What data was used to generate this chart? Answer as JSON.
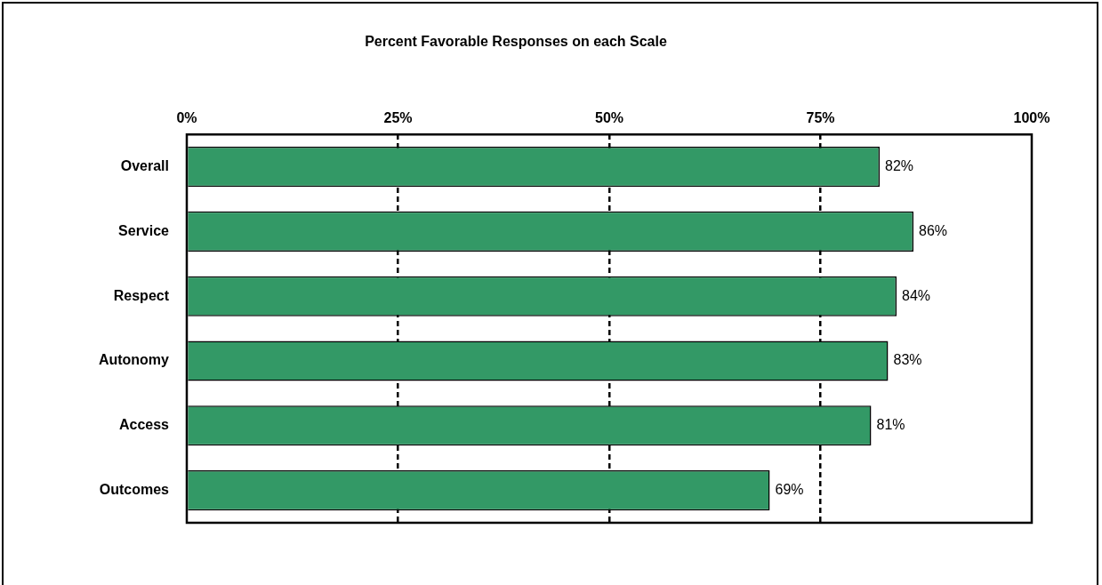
{
  "chart_data": {
    "type": "bar",
    "orientation": "horizontal",
    "title": "Percent Favorable Responses on each Scale",
    "categories": [
      "Overall",
      "Service",
      "Respect",
      "Autonomy",
      "Access",
      "Outcomes"
    ],
    "values": [
      82,
      86,
      84,
      83,
      81,
      69
    ],
    "value_labels": [
      "82%",
      "86%",
      "84%",
      "83%",
      "81%",
      "69%"
    ],
    "color": "#339966",
    "xlim": [
      0,
      100
    ],
    "xticks": [
      {
        "value": 0,
        "label": "0%"
      },
      {
        "value": 25,
        "label": "25%"
      },
      {
        "value": 50,
        "label": "50%"
      },
      {
        "value": 75,
        "label": "75%"
      },
      {
        "value": 100,
        "label": "100%"
      }
    ],
    "grid": "x",
    "line_style": "dashed",
    "legend": false
  }
}
